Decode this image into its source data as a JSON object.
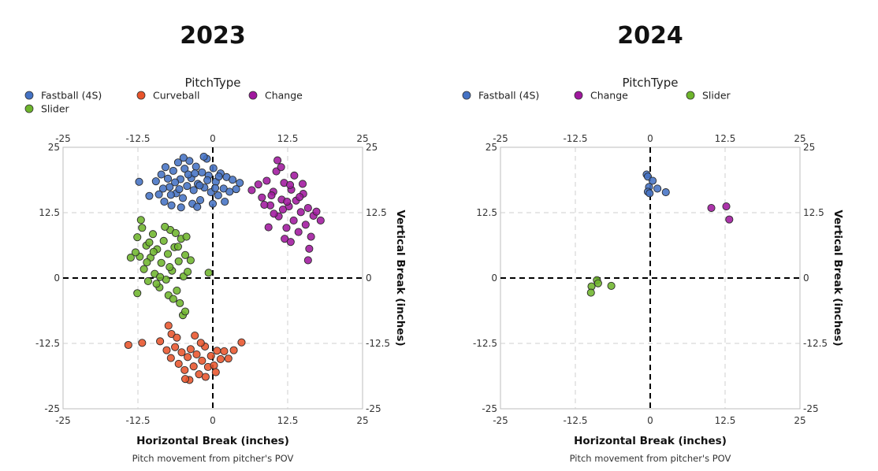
{
  "chart_data": [
    {
      "type": "scatter",
      "title": "2023",
      "legend_title": "PitchType",
      "legend": [
        {
          "name": "Fastball (4S)",
          "color": "#4472c4"
        },
        {
          "name": "Curveball",
          "color": "#e8542b"
        },
        {
          "name": "Change",
          "color": "#a0189e"
        },
        {
          "name": "Slider",
          "color": "#6eb52c"
        }
      ],
      "xlabel": "Horizontal Break (inches)",
      "ylabel": "Vertical Break (inches)",
      "caption": "Pitch movement from pitcher's POV",
      "xlim": [
        -25,
        25
      ],
      "ylim": [
        -25,
        25
      ],
      "x_ticks": [
        "-25",
        "-12.5",
        "0",
        "12.5",
        "25"
      ],
      "y_ticks": [
        "25",
        "12.5",
        "0",
        "-12.5",
        "-25"
      ],
      "series": [
        {
          "name": "Fastball (4S)",
          "color": "#4472c4",
          "points": [
            [
              -9.5,
              18.5
            ],
            [
              -8.6,
              19.8
            ],
            [
              -7.9,
              21.2
            ],
            [
              -7.2,
              17.4
            ],
            [
              -6.6,
              20.5
            ],
            [
              -6.1,
              16.2
            ],
            [
              -5.8,
              22.1
            ],
            [
              -5.4,
              18.9
            ],
            [
              -5.0,
              15.3
            ],
            [
              -4.7,
              20.9
            ],
            [
              -4.3,
              17.6
            ],
            [
              -3.9,
              22.4
            ],
            [
              -3.6,
              19.1
            ],
            [
              -3.2,
              16.8
            ],
            [
              -2.8,
              21.3
            ],
            [
              -2.5,
              18.0
            ],
            [
              -2.1,
              14.9
            ],
            [
              -1.8,
              20.2
            ],
            [
              -1.4,
              17.3
            ],
            [
              -1.0,
              22.8
            ],
            [
              -0.7,
              19.6
            ],
            [
              -0.3,
              16.4
            ],
            [
              0.1,
              21.0
            ],
            [
              0.5,
              18.4
            ],
            [
              0.9,
              15.8
            ],
            [
              1.3,
              20.0
            ],
            [
              1.8,
              17.1
            ],
            [
              2.3,
              19.3
            ],
            [
              2.8,
              16.5
            ],
            [
              3.3,
              18.8
            ],
            [
              3.9,
              17.0
            ],
            [
              4.5,
              18.2
            ],
            [
              -12.3,
              18.4
            ],
            [
              -10.6,
              15.7
            ],
            [
              -8.1,
              14.6
            ],
            [
              -6.9,
              13.9
            ],
            [
              -5.3,
              13.5
            ],
            [
              -3.4,
              14.2
            ],
            [
              -2.6,
              13.6
            ],
            [
              -1.5,
              23.2
            ],
            [
              -4.9,
              23.0
            ],
            [
              -8.3,
              17.1
            ],
            [
              -9.0,
              16.0
            ],
            [
              -7.5,
              19.0
            ],
            [
              -6.3,
              18.3
            ],
            [
              -4.1,
              19.8
            ],
            [
              -2.2,
              17.7
            ],
            [
              -0.9,
              18.7
            ],
            [
              0.4,
              17.2
            ],
            [
              1.0,
              19.4
            ],
            [
              -3.0,
              20.0
            ],
            [
              -5.6,
              17.0
            ],
            [
              -7.0,
              15.9
            ],
            [
              0.0,
              14.2
            ],
            [
              2.0,
              14.6
            ]
          ]
        },
        {
          "name": "Change",
          "color": "#a0189e",
          "points": [
            [
              6.5,
              16.8
            ],
            [
              7.6,
              17.9
            ],
            [
              8.2,
              15.4
            ],
            [
              9.0,
              18.6
            ],
            [
              9.6,
              13.9
            ],
            [
              10.1,
              16.5
            ],
            [
              10.6,
              20.4
            ],
            [
              11.0,
              11.8
            ],
            [
              11.5,
              15.0
            ],
            [
              11.9,
              18.2
            ],
            [
              12.3,
              9.6
            ],
            [
              12.7,
              13.7
            ],
            [
              13.1,
              16.9
            ],
            [
              13.5,
              11.0
            ],
            [
              13.9,
              14.8
            ],
            [
              14.3,
              8.8
            ],
            [
              14.7,
              12.6
            ],
            [
              15.1,
              16.1
            ],
            [
              15.5,
              10.2
            ],
            [
              15.9,
              13.4
            ],
            [
              16.4,
              7.9
            ],
            [
              16.8,
              11.9
            ],
            [
              17.3,
              12.7
            ],
            [
              18.0,
              11.0
            ],
            [
              10.8,
              22.5
            ],
            [
              11.4,
              21.2
            ],
            [
              13.6,
              19.6
            ],
            [
              15.0,
              18.0
            ],
            [
              16.1,
              5.6
            ],
            [
              15.9,
              3.4
            ],
            [
              9.3,
              9.7
            ],
            [
              10.2,
              12.3
            ],
            [
              12.0,
              7.5
            ],
            [
              13.0,
              6.9
            ],
            [
              14.5,
              15.5
            ],
            [
              11.7,
              13.1
            ],
            [
              12.9,
              17.8
            ],
            [
              8.6,
              14.0
            ],
            [
              9.8,
              15.8
            ],
            [
              12.4,
              14.6
            ]
          ]
        },
        {
          "name": "Slider",
          "color": "#6eb52c",
          "points": [
            [
              -12.6,
              7.8
            ],
            [
              -12.2,
              4.1
            ],
            [
              -11.8,
              9.6
            ],
            [
              -11.5,
              1.7
            ],
            [
              -11.1,
              6.2
            ],
            [
              -10.8,
              -0.6
            ],
            [
              -10.4,
              3.9
            ],
            [
              -10.0,
              8.4
            ],
            [
              -9.7,
              0.8
            ],
            [
              -9.3,
              5.5
            ],
            [
              -8.9,
              -1.8
            ],
            [
              -8.6,
              2.9
            ],
            [
              -8.2,
              7.1
            ],
            [
              -7.8,
              -0.3
            ],
            [
              -7.5,
              4.6
            ],
            [
              -7.1,
              9.2
            ],
            [
              -6.8,
              1.4
            ],
            [
              -6.4,
              5.9
            ],
            [
              -6.0,
              -2.4
            ],
            [
              -5.7,
              3.2
            ],
            [
              -5.3,
              7.5
            ],
            [
              -4.9,
              0.3
            ],
            [
              -4.6,
              4.4
            ],
            [
              -4.2,
              1.2
            ],
            [
              -3.7,
              3.4
            ],
            [
              -12.9,
              4.9
            ],
            [
              -12.0,
              11.1
            ],
            [
              -12.6,
              -2.9
            ],
            [
              -7.4,
              -3.3
            ],
            [
              -6.6,
              -4.0
            ],
            [
              -5.5,
              -4.8
            ],
            [
              -5.0,
              -7.1
            ],
            [
              -4.6,
              -6.4
            ],
            [
              -0.7,
              1.0
            ],
            [
              -13.7,
              3.9
            ],
            [
              -9.4,
              -1.1
            ],
            [
              -8.0,
              9.8
            ],
            [
              -10.6,
              6.8
            ],
            [
              -6.2,
              8.6
            ],
            [
              -4.4,
              7.9
            ],
            [
              -11.0,
              3.0
            ],
            [
              -9.9,
              5.0
            ],
            [
              -7.2,
              2.1
            ],
            [
              -5.8,
              6.0
            ],
            [
              -8.8,
              0.2
            ]
          ]
        },
        {
          "name": "Curveball",
          "color": "#e8542b",
          "points": [
            [
              -11.8,
              -12.4
            ],
            [
              -8.8,
              -12.1
            ],
            [
              -7.7,
              -13.8
            ],
            [
              -7.0,
              -15.3
            ],
            [
              -6.3,
              -13.2
            ],
            [
              -5.7,
              -16.4
            ],
            [
              -5.2,
              -14.2
            ],
            [
              -4.7,
              -17.6
            ],
            [
              -4.2,
              -15.1
            ],
            [
              -3.7,
              -13.6
            ],
            [
              -3.2,
              -16.9
            ],
            [
              -2.7,
              -14.6
            ],
            [
              -2.3,
              -18.4
            ],
            [
              -1.8,
              -15.8
            ],
            [
              -1.3,
              -13.1
            ],
            [
              -0.8,
              -17.0
            ],
            [
              -0.3,
              -14.9
            ],
            [
              0.2,
              -16.7
            ],
            [
              0.7,
              -13.9
            ],
            [
              1.3,
              -15.5
            ],
            [
              1.9,
              -14.0
            ],
            [
              2.6,
              -15.4
            ],
            [
              3.5,
              -13.8
            ],
            [
              4.8,
              -12.3
            ],
            [
              -14.1,
              -12.8
            ],
            [
              -7.4,
              -9.1
            ],
            [
              -6.9,
              -10.7
            ],
            [
              -3.9,
              -19.5
            ],
            [
              -1.2,
              -18.9
            ],
            [
              -4.6,
              -19.3
            ],
            [
              -6.0,
              -11.4
            ],
            [
              -2.0,
              -12.4
            ],
            [
              0.5,
              -18.0
            ],
            [
              -3.0,
              -11.0
            ]
          ]
        }
      ]
    },
    {
      "type": "scatter",
      "title": "2024",
      "legend_title": "PitchType",
      "legend": [
        {
          "name": "Fastball (4S)",
          "color": "#4472c4"
        },
        {
          "name": "Change",
          "color": "#a0189e"
        },
        {
          "name": "Slider",
          "color": "#6eb52c"
        }
      ],
      "xlabel": "Horizontal Break (inches)",
      "ylabel": "Vertical Break (inches)",
      "caption": "Pitch movement from pitcher's POV",
      "xlim": [
        -25,
        25
      ],
      "ylim": [
        -25,
        25
      ],
      "x_ticks": [
        "-25",
        "-12.5",
        "0",
        "12.5",
        "25"
      ],
      "y_ticks": [
        "25",
        "12.5",
        "0",
        "-12.5",
        "-25"
      ],
      "series": [
        {
          "name": "Fastball (4S)",
          "color": "#4472c4",
          "points": [
            [
              -0.6,
              19.8
            ],
            [
              -0.4,
              19.4
            ],
            [
              0.4,
              18.6
            ],
            [
              -0.2,
              17.4
            ],
            [
              1.2,
              17.1
            ],
            [
              2.6,
              16.4
            ],
            [
              -0.4,
              16.5
            ],
            [
              -0.1,
              16.2
            ]
          ]
        },
        {
          "name": "Change",
          "color": "#a0189e",
          "points": [
            [
              10.2,
              13.4
            ],
            [
              12.7,
              13.7
            ],
            [
              13.2,
              11.2
            ]
          ]
        },
        {
          "name": "Slider",
          "color": "#6eb52c",
          "points": [
            [
              -8.9,
              -0.4
            ],
            [
              -8.7,
              -1.0
            ],
            [
              -9.8,
              -1.6
            ],
            [
              -9.9,
              -2.8
            ],
            [
              -6.5,
              -1.5
            ]
          ]
        }
      ]
    }
  ]
}
